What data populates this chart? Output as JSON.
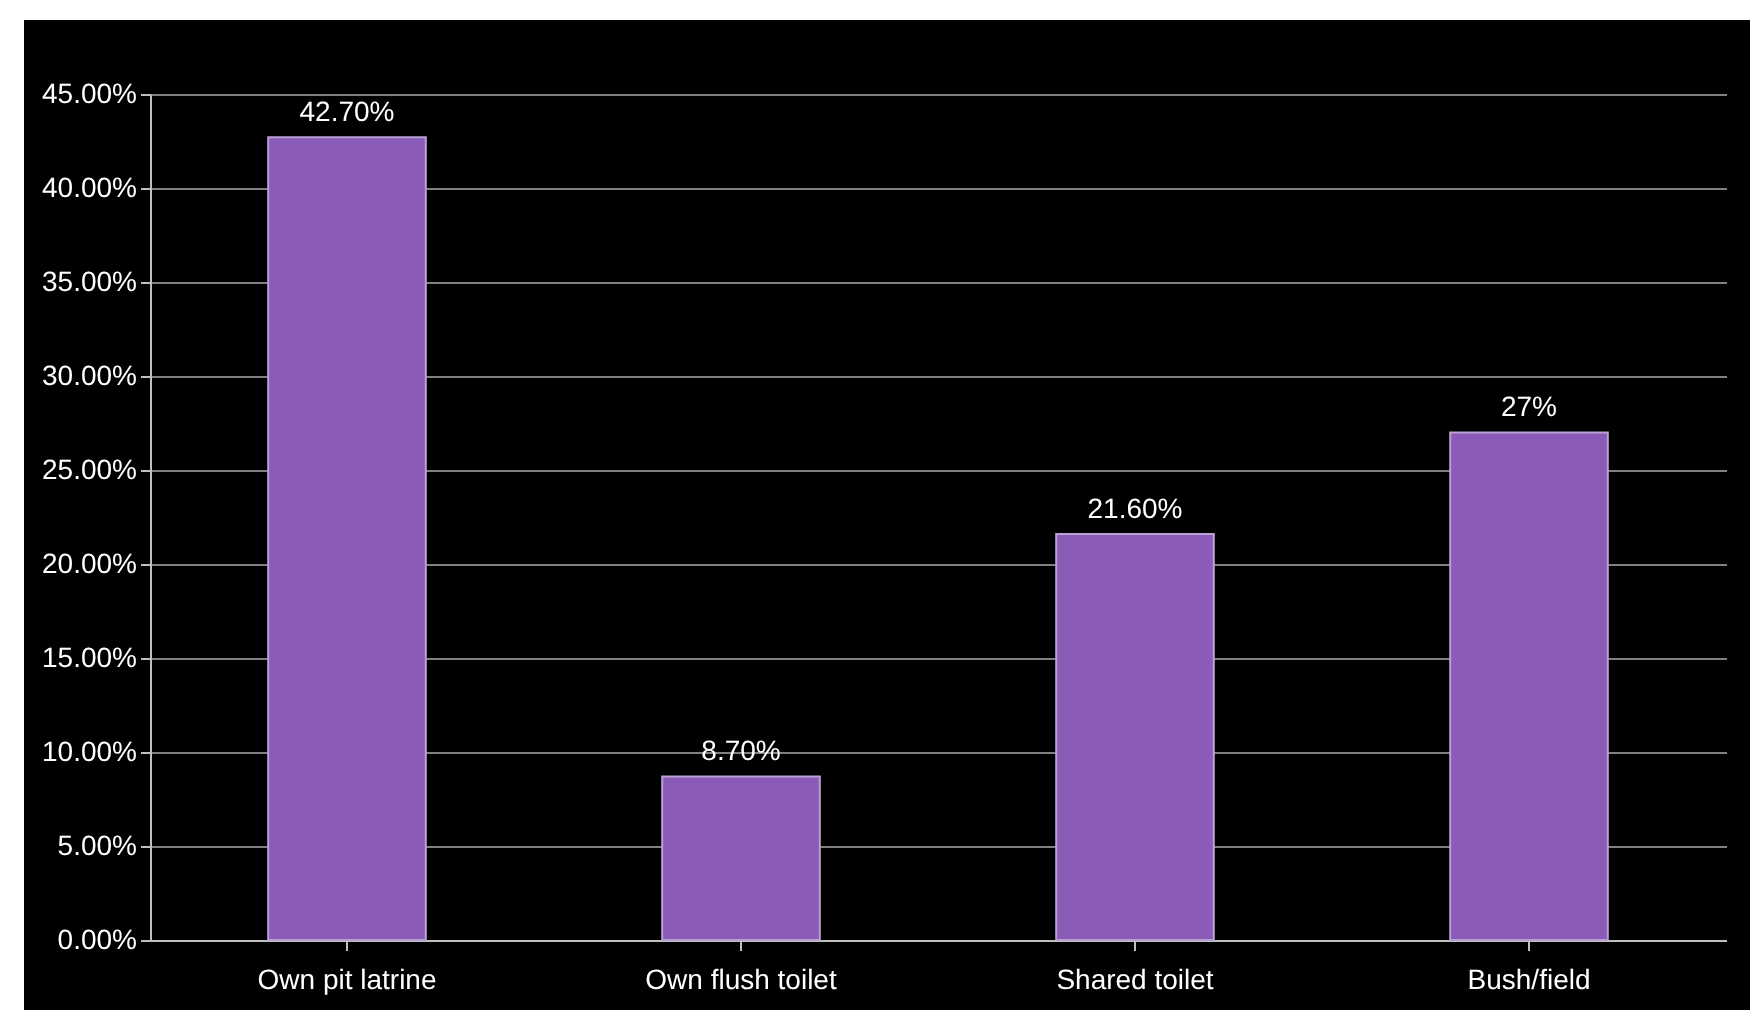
{
  "chart_data": {
    "type": "bar",
    "categories": [
      "Own pit latrine",
      "Own flush toilet",
      "Shared toilet",
      "Bush/field"
    ],
    "values": [
      42.7,
      8.7,
      21.6,
      27
    ],
    "value_labels": [
      "42.70%",
      "8.70%",
      "21.60%",
      "27%"
    ],
    "color": "#8a5cb8",
    "ylim": [
      0,
      45
    ],
    "yticks": [
      {
        "value": 0,
        "label": "0.00%"
      },
      {
        "value": 5,
        "label": "5.00%"
      },
      {
        "value": 10,
        "label": "10.00%"
      },
      {
        "value": 15,
        "label": "15.00%"
      },
      {
        "value": 20,
        "label": "20.00%"
      },
      {
        "value": 25,
        "label": "25.00%"
      },
      {
        "value": 30,
        "label": "30.00%"
      },
      {
        "value": 35,
        "label": "35.00%"
      },
      {
        "value": 40,
        "label": "40.00%"
      },
      {
        "value": 45,
        "label": "45.00%"
      }
    ],
    "grid": "y"
  }
}
